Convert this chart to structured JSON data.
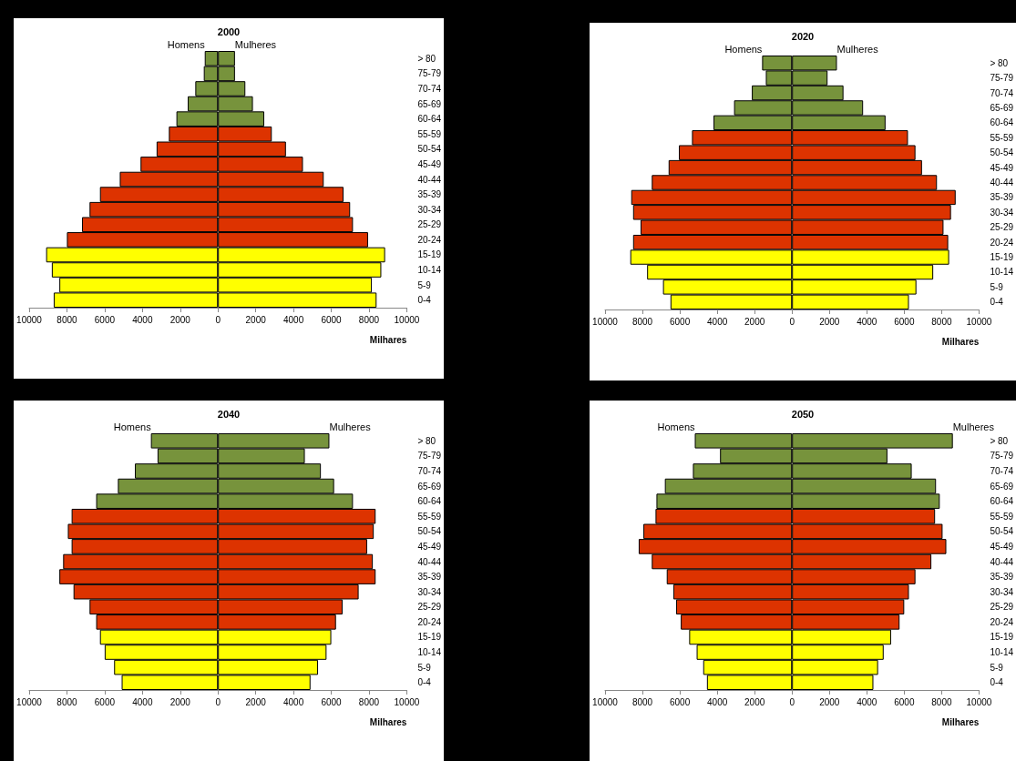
{
  "chart_data": [
    {
      "type": "bar",
      "orientation": "horizontal",
      "stacked": true,
      "title": "2000",
      "xlabel": "Milhares",
      "categories": [
        "> 80",
        "75-79",
        "70-74",
        "65-69",
        "60-64",
        "55-59",
        "50-54",
        "45-49",
        "40-44",
        "35-39",
        "30-34",
        "25-29",
        "20-24",
        "15-19",
        "10-14",
        "5-9",
        "0-4"
      ],
      "series": [
        {
          "name": "Homens",
          "colors": [
            "#77933c",
            "#77933c",
            "#77933c",
            "#77933c",
            "#77933c",
            "#dd3300",
            "#dd3300",
            "#dd3300",
            "#dd3300",
            "#dd3300",
            "#dd3300",
            "#dd3300",
            "#dd3300",
            "#ffff00",
            "#ffff00",
            "#ffff00",
            "#ffff00"
          ],
          "values": [
            -700,
            -750,
            -1200,
            -1600,
            -2200,
            -2600,
            -3250,
            -4100,
            -5200,
            -6250,
            -6800,
            -7200,
            -8000,
            -9100,
            -8800,
            -8400,
            -8700
          ]
        },
        {
          "name": "Mulheres",
          "colors": [
            "#77933c",
            "#77933c",
            "#77933c",
            "#77933c",
            "#77933c",
            "#dd3300",
            "#dd3300",
            "#dd3300",
            "#dd3300",
            "#dd3300",
            "#dd3300",
            "#dd3300",
            "#dd3300",
            "#ffff00",
            "#ffff00",
            "#ffff00",
            "#ffff00"
          ],
          "values": [
            900,
            900,
            1450,
            1850,
            2450,
            2850,
            3600,
            4500,
            5600,
            6650,
            7000,
            7150,
            7950,
            8850,
            8650,
            8150,
            8400
          ]
        }
      ],
      "xlim": [
        -10000,
        10000
      ],
      "xticks": [
        {
          "value": -10000,
          "label": "10000"
        },
        {
          "value": -8000,
          "label": "8000"
        },
        {
          "value": -6000,
          "label": "6000"
        },
        {
          "value": -4000,
          "label": "4000"
        },
        {
          "value": -2000,
          "label": "2000"
        },
        0,
        2000,
        4000,
        6000,
        8000,
        10000
      ]
    },
    {
      "type": "bar",
      "orientation": "horizontal",
      "stacked": true,
      "title": "2020",
      "xlabel": "Milhares",
      "categories": [
        "> 80",
        "75-79",
        "70-74",
        "65-69",
        "60-64",
        "55-59",
        "50-54",
        "45-49",
        "40-44",
        "35-39",
        "30-34",
        "25-29",
        "20-24",
        "15-19",
        "10-14",
        "5-9",
        "0-4"
      ],
      "series": [
        {
          "name": "Homens",
          "colors": [
            "#77933c",
            "#77933c",
            "#77933c",
            "#77933c",
            "#77933c",
            "#dd3300",
            "#dd3300",
            "#dd3300",
            "#dd3300",
            "#dd3300",
            "#dd3300",
            "#dd3300",
            "#dd3300",
            "#ffff00",
            "#ffff00",
            "#ffff00",
            "#ffff00"
          ],
          "values": [
            -1600,
            -1400,
            -2150,
            -3100,
            -4200,
            -5350,
            -6050,
            -6600,
            -7500,
            -8600,
            -8500,
            -8100,
            -8500,
            -8650,
            -7750,
            -6900,
            -6500
          ]
        },
        {
          "name": "Mulheres",
          "colors": [
            "#77933c",
            "#77933c",
            "#77933c",
            "#77933c",
            "#77933c",
            "#dd3300",
            "#dd3300",
            "#dd3300",
            "#dd3300",
            "#dd3300",
            "#dd3300",
            "#dd3300",
            "#dd3300",
            "#ffff00",
            "#ffff00",
            "#ffff00",
            "#ffff00"
          ],
          "values": [
            2400,
            1900,
            2750,
            3800,
            5000,
            6200,
            6600,
            6950,
            7750,
            8750,
            8500,
            8100,
            8350,
            8400,
            7550,
            6650,
            6250
          ]
        }
      ],
      "xlim": [
        -10000,
        10000
      ],
      "xticks": [
        {
          "value": -10000,
          "label": "10000"
        },
        {
          "value": -8000,
          "label": "8000"
        },
        {
          "value": -6000,
          "label": "6000"
        },
        {
          "value": -4000,
          "label": "4000"
        },
        {
          "value": -2000,
          "label": "2000"
        },
        0,
        2000,
        4000,
        6000,
        8000,
        10000
      ]
    },
    {
      "type": "bar",
      "orientation": "horizontal",
      "stacked": true,
      "title": "2040",
      "xlabel": "Milhares",
      "categories": [
        "> 80",
        "75-79",
        "70-74",
        "65-69",
        "60-64",
        "55-59",
        "50-54",
        "45-49",
        "40-44",
        "35-39",
        "30-34",
        "25-29",
        "20-24",
        "15-19",
        "10-14",
        "5-9",
        "0-4"
      ],
      "series": [
        {
          "name": "Homens",
          "colors": [
            "#77933c",
            "#77933c",
            "#77933c",
            "#77933c",
            "#77933c",
            "#dd3300",
            "#dd3300",
            "#dd3300",
            "#dd3300",
            "#dd3300",
            "#dd3300",
            "#dd3300",
            "#dd3300",
            "#ffff00",
            "#ffff00",
            "#ffff00",
            "#ffff00"
          ],
          "values": [
            -3550,
            -3200,
            -4400,
            -5300,
            -6450,
            -7750,
            -7950,
            -7750,
            -8200,
            -8400,
            -7650,
            -6800,
            -6450,
            -6250,
            -6000,
            -5500,
            -5100
          ]
        },
        {
          "name": "Mulheres",
          "colors": [
            "#77933c",
            "#77933c",
            "#77933c",
            "#77933c",
            "#77933c",
            "#dd3300",
            "#dd3300",
            "#dd3300",
            "#dd3300",
            "#dd3300",
            "#dd3300",
            "#dd3300",
            "#dd3300",
            "#ffff00",
            "#ffff00",
            "#ffff00",
            "#ffff00"
          ],
          "values": [
            5900,
            4600,
            5450,
            6150,
            7150,
            8350,
            8250,
            7900,
            8200,
            8350,
            7450,
            6600,
            6250,
            6000,
            5750,
            5300,
            4900
          ]
        }
      ],
      "xlim": [
        -10000,
        10000
      ],
      "xticks": [
        {
          "value": -10000,
          "label": "10000"
        },
        {
          "value": -8000,
          "label": "8000"
        },
        {
          "value": -6000,
          "label": "6000"
        },
        {
          "value": -4000,
          "label": "4000"
        },
        {
          "value": -2000,
          "label": "2000"
        },
        0,
        2000,
        4000,
        6000,
        8000,
        10000
      ]
    },
    {
      "type": "bar",
      "orientation": "horizontal",
      "stacked": true,
      "title": "2050",
      "xlabel": "Milhares",
      "categories": [
        "> 80",
        "75-79",
        "70-74",
        "65-69",
        "60-64",
        "55-59",
        "50-54",
        "45-49",
        "40-44",
        "35-39",
        "30-34",
        "25-29",
        "20-24",
        "15-19",
        "10-14",
        "5-9",
        "0-4"
      ],
      "series": [
        {
          "name": "Homens",
          "colors": [
            "#77933c",
            "#77933c",
            "#77933c",
            "#77933c",
            "#77933c",
            "#dd3300",
            "#dd3300",
            "#dd3300",
            "#dd3300",
            "#dd3300",
            "#dd3300",
            "#dd3300",
            "#dd3300",
            "#ffff00",
            "#ffff00",
            "#ffff00",
            "#ffff00"
          ],
          "values": [
            -5200,
            -3850,
            -5300,
            -6800,
            -7250,
            -7300,
            -7950,
            -8200,
            -7500,
            -6700,
            -6350,
            -6200,
            -5950,
            -5500,
            -5100,
            -4750,
            -4550
          ]
        },
        {
          "name": "Mulheres",
          "colors": [
            "#77933c",
            "#77933c",
            "#77933c",
            "#77933c",
            "#77933c",
            "#dd3300",
            "#dd3300",
            "#dd3300",
            "#dd3300",
            "#dd3300",
            "#dd3300",
            "#dd3300",
            "#dd3300",
            "#ffff00",
            "#ffff00",
            "#ffff00",
            "#ffff00"
          ],
          "values": [
            8600,
            5100,
            6400,
            7700,
            7900,
            7650,
            8050,
            8250,
            7450,
            6600,
            6250,
            6000,
            5750,
            5300,
            4900,
            4600,
            4350
          ]
        }
      ],
      "xlim": [
        -10000,
        10000
      ],
      "xticks": [
        {
          "value": -10000,
          "label": "10000"
        },
        {
          "value": -8000,
          "label": "8000"
        },
        {
          "value": -6000,
          "label": "6000"
        },
        {
          "value": -4000,
          "label": "4000"
        },
        {
          "value": -2000,
          "label": "2000"
        },
        0,
        2000,
        4000,
        6000,
        8000,
        10000
      ]
    }
  ]
}
